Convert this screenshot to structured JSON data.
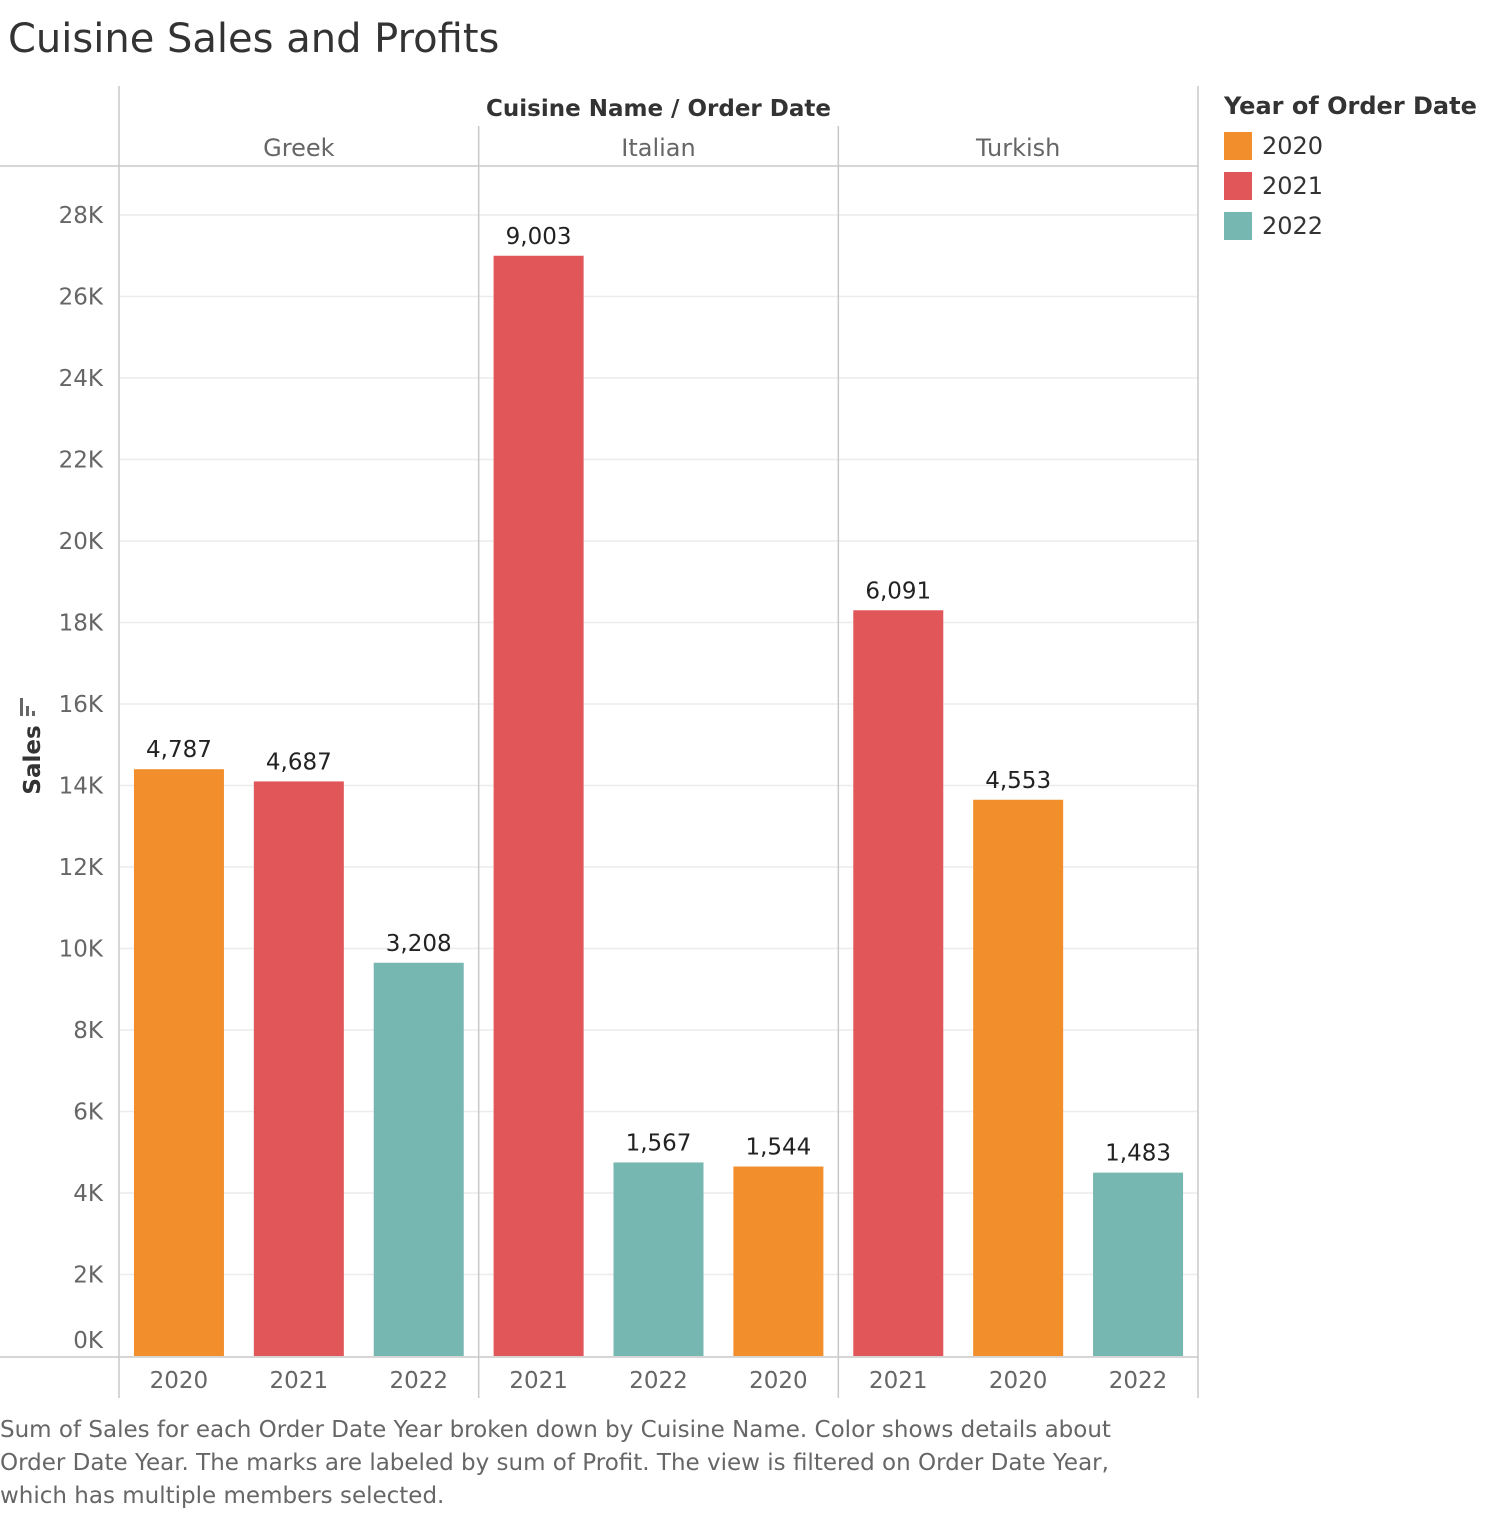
{
  "chart_data": {
    "type": "bar",
    "title": "Cuisine Sales and Profits",
    "column_header": "Cuisine Name  /  Order Date",
    "ylabel": "Sales",
    "ylim": [
      0,
      29000
    ],
    "y_ticks": [
      {
        "value": 0,
        "label": "0K"
      },
      {
        "value": 2000,
        "label": "2K"
      },
      {
        "value": 4000,
        "label": "4K"
      },
      {
        "value": 6000,
        "label": "6K"
      },
      {
        "value": 8000,
        "label": "8K"
      },
      {
        "value": 10000,
        "label": "10K"
      },
      {
        "value": 12000,
        "label": "12K"
      },
      {
        "value": 14000,
        "label": "14K"
      },
      {
        "value": 16000,
        "label": "16K"
      },
      {
        "value": 18000,
        "label": "18K"
      },
      {
        "value": 20000,
        "label": "20K"
      },
      {
        "value": 22000,
        "label": "22K"
      },
      {
        "value": 24000,
        "label": "24K"
      },
      {
        "value": 26000,
        "label": "26K"
      },
      {
        "value": 28000,
        "label": "28K"
      }
    ],
    "grid": true,
    "legend": {
      "title": "Year of Order Date",
      "placement": "top-right",
      "items": [
        {
          "label": "2020",
          "color": "#F28E2B"
        },
        {
          "label": "2021",
          "color": "#E15759"
        },
        {
          "label": "2022",
          "color": "#76B7B2"
        }
      ]
    },
    "groups": [
      {
        "name": "Greek",
        "bars": [
          {
            "year": "2020",
            "sales": 14400,
            "profit_label": "4,787"
          },
          {
            "year": "2021",
            "sales": 14100,
            "profit_label": "4,687"
          },
          {
            "year": "2022",
            "sales": 9650,
            "profit_label": "3,208"
          }
        ]
      },
      {
        "name": "Italian",
        "bars": [
          {
            "year": "2021",
            "sales": 27000,
            "profit_label": "9,003"
          },
          {
            "year": "2022",
            "sales": 4750,
            "profit_label": "1,567"
          },
          {
            "year": "2020",
            "sales": 4650,
            "profit_label": "1,544"
          }
        ]
      },
      {
        "name": "Turkish",
        "bars": [
          {
            "year": "2021",
            "sales": 18300,
            "profit_label": "6,091"
          },
          {
            "year": "2020",
            "sales": 13650,
            "profit_label": "4,553"
          },
          {
            "year": "2022",
            "sales": 4500,
            "profit_label": "1,483"
          }
        ]
      }
    ],
    "caption": "Sum of Sales for each Order Date Year broken down by Cuisine Name.  Color shows details about Order Date Year.  The marks are labeled by sum of Profit. The view is filtered on Order Date Year, which has multiple members selected."
  }
}
